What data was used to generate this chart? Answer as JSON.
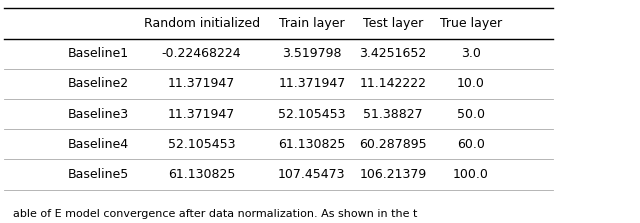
{
  "columns": [
    "",
    "Random initialized",
    "Train layer",
    "Test layer",
    "True layer"
  ],
  "rows": [
    [
      "Baseline1",
      "-0.22468224",
      "3.519798",
      "3.4251652",
      "3.0"
    ],
    [
      "Baseline2",
      "11.371947",
      "11.371947",
      "11.142222",
      "10.0"
    ],
    [
      "Baseline3",
      "11.371947",
      "52.105453",
      "51.38827",
      "50.0"
    ],
    [
      "Baseline4",
      "52.105453",
      "61.130825",
      "60.287895",
      "60.0"
    ],
    [
      "Baseline5",
      "61.130825",
      "107.45473",
      "106.21379",
      "100.0"
    ]
  ],
  "background_color": "#ffffff",
  "header_line_color": "#000000",
  "row_line_color": "#aaaaaa",
  "text_color": "#000000",
  "font_size": 9.0,
  "header_font_size": 9.0,
  "caption": "able of E model convergence after data normalization. As shown in the t"
}
